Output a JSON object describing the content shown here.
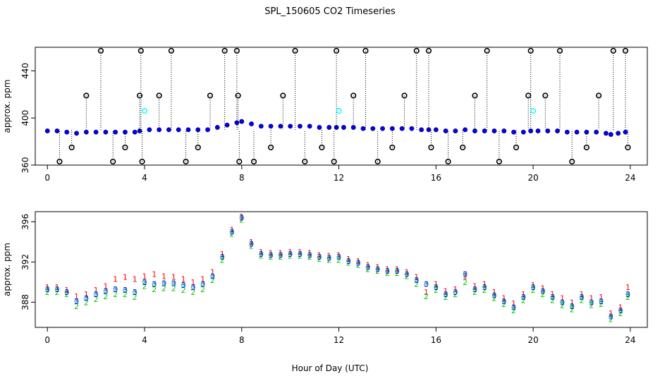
{
  "chart_data": [
    {
      "type": "scatter",
      "title": "SPL_150605  CO2 Timeseries",
      "xlabel": "",
      "ylabel": "approx. ppm",
      "xlim": [
        -0.5,
        24.7
      ],
      "ylim": [
        360,
        460
      ],
      "xticks": [
        0,
        4,
        8,
        12,
        16,
        20,
        24
      ],
      "yticks": [
        360,
        400,
        440
      ],
      "series": [
        {
          "marker": "circle-blue",
          "color": "#0000ff",
          "x": [
            0.0,
            0.4,
            0.8,
            1.2,
            1.6,
            2.0,
            2.4,
            2.8,
            3.2,
            3.6,
            3.8,
            4.2,
            4.6,
            5.0,
            5.4,
            5.8,
            6.2,
            6.6,
            7.0,
            7.4,
            7.8,
            8.0,
            8.4,
            8.8,
            9.2,
            9.6,
            10.0,
            10.4,
            10.8,
            11.2,
            11.6,
            11.9,
            12.2,
            12.6,
            13.0,
            13.4,
            13.8,
            14.2,
            14.6,
            15.0,
            15.4,
            15.7,
            16.0,
            16.4,
            16.8,
            17.2,
            17.6,
            18.0,
            18.4,
            18.8,
            19.2,
            19.6,
            19.9,
            20.2,
            20.6,
            21.0,
            21.4,
            21.8,
            22.2,
            22.6,
            23.0,
            23.2,
            23.5,
            23.8
          ],
          "y": [
            389,
            389,
            388,
            387,
            388,
            388,
            388,
            388,
            388,
            388,
            389,
            390,
            390,
            390,
            390,
            390,
            390,
            390,
            392,
            394,
            396,
            397,
            395,
            393,
            393,
            393,
            393,
            393,
            393,
            392,
            392,
            392,
            392,
            392,
            391,
            391,
            391,
            391,
            391,
            391,
            390,
            390,
            390,
            389,
            389,
            390,
            389,
            389,
            389,
            389,
            388,
            388,
            389,
            389,
            389,
            389,
            388,
            388,
            388,
            388,
            387,
            386,
            387,
            388
          ]
        },
        {
          "marker": "circle-black-outlier",
          "color": "#000000",
          "x": [
            0.5,
            1.0,
            1.6,
            2.2,
            2.7,
            3.2,
            3.8,
            3.85,
            3.9,
            4.6,
            5.1,
            5.7,
            6.2,
            6.7,
            7.3,
            7.8,
            7.85,
            7.9,
            8.5,
            9.2,
            9.7,
            10.2,
            10.6,
            11.3,
            11.8,
            11.9,
            12.6,
            13.1,
            13.6,
            14.2,
            14.7,
            15.2,
            15.7,
            15.8,
            16.5,
            17.1,
            17.6,
            18.1,
            18.6,
            19.3,
            19.8,
            19.9,
            20.5,
            21.1,
            21.6,
            22.2,
            22.7,
            23.3,
            23.8,
            23.9
          ],
          "y": [
            363,
            375,
            419,
            457,
            363,
            375,
            419,
            457,
            363,
            419,
            457,
            363,
            375,
            419,
            457,
            457,
            419,
            363,
            363,
            375,
            419,
            457,
            363,
            375,
            363,
            457,
            419,
            457,
            363,
            375,
            419,
            457,
            457,
            375,
            363,
            375,
            419,
            457,
            363,
            375,
            419,
            457,
            419,
            457,
            363,
            375,
            419,
            457,
            457,
            375
          ]
        },
        {
          "marker": "circle-cyan",
          "color": "#00ffff",
          "x": [
            4.0,
            12.0,
            20.0
          ],
          "y": [
            406,
            406,
            406
          ]
        }
      ]
    },
    {
      "type": "scatter",
      "title": "",
      "xlabel": "Hour of Day (UTC)",
      "ylabel": "approx. ppm",
      "xlim": [
        -0.5,
        24.7
      ],
      "ylim": [
        385.5,
        397
      ],
      "xticks": [
        0,
        4,
        8,
        12,
        16,
        20,
        24
      ],
      "yticks": [
        388,
        392,
        396
      ],
      "series": [
        {
          "marker": "1",
          "color": "#ff0000",
          "x": [
            0.0,
            0.4,
            0.8,
            1.2,
            1.6,
            2.0,
            2.4,
            2.8,
            3.2,
            3.6,
            4.0,
            4.4,
            4.8,
            5.2,
            5.6,
            6.0,
            6.4,
            6.8,
            7.2,
            7.6,
            8.0,
            8.4,
            8.8,
            9.2,
            9.6,
            10.0,
            10.4,
            10.8,
            11.2,
            11.6,
            12.0,
            12.4,
            12.8,
            13.2,
            13.6,
            14.0,
            14.4,
            14.8,
            15.2,
            15.6,
            16.0,
            16.4,
            16.8,
            17.2,
            17.6,
            18.0,
            18.4,
            18.8,
            19.2,
            19.6,
            20.0,
            20.4,
            20.8,
            21.2,
            21.6,
            22.0,
            22.4,
            22.8,
            23.2,
            23.6,
            23.9
          ],
          "y": [
            389.5,
            389.5,
            389.2,
            388.6,
            388.8,
            389.2,
            389.6,
            390.3,
            390.5,
            390.3,
            390.6,
            390.8,
            390.6,
            390.5,
            390.3,
            390.0,
            390.3,
            391.0,
            392.8,
            395.2,
            396.5,
            394.0,
            393.0,
            392.9,
            392.9,
            393.0,
            393.0,
            392.9,
            392.7,
            392.6,
            392.7,
            392.3,
            392.1,
            391.7,
            391.5,
            391.3,
            391.3,
            391.0,
            390.5,
            389.0,
            389.8,
            389.1,
            389.3,
            390.6,
            389.6,
            389.8,
            389.0,
            388.4,
            387.9,
            388.8,
            389.7,
            389.4,
            388.8,
            388.4,
            388.0,
            388.8,
            388.4,
            388.5,
            386.9,
            387.5,
            389.5
          ]
        },
        {
          "marker": "2",
          "color": "#00cc00",
          "x": [
            0.0,
            0.4,
            0.8,
            1.2,
            1.6,
            2.0,
            2.4,
            2.8,
            3.2,
            3.6,
            4.0,
            4.4,
            4.8,
            5.2,
            5.6,
            6.0,
            6.4,
            6.8,
            7.2,
            7.6,
            8.0,
            8.4,
            8.8,
            9.2,
            9.6,
            10.0,
            10.4,
            10.8,
            11.2,
            11.6,
            12.0,
            12.4,
            12.8,
            13.2,
            13.6,
            14.0,
            14.4,
            14.8,
            15.2,
            15.6,
            16.0,
            16.4,
            16.8,
            17.2,
            17.6,
            18.0,
            18.4,
            18.8,
            19.2,
            19.6,
            20.0,
            20.4,
            20.8,
            21.2,
            21.6,
            22.0,
            22.4,
            22.8,
            23.2,
            23.6,
            23.9
          ],
          "y": [
            389.0,
            389.0,
            388.8,
            387.6,
            388.0,
            388.3,
            388.6,
            388.8,
            388.8,
            388.5,
            389.6,
            389.3,
            389.4,
            389.4,
            389.2,
            389.0,
            389.3,
            390.2,
            392.2,
            394.8,
            396.2,
            393.6,
            392.6,
            392.5,
            392.5,
            392.6,
            392.6,
            392.5,
            392.3,
            392.2,
            392.2,
            391.9,
            391.7,
            391.3,
            391.1,
            390.9,
            390.9,
            390.6,
            389.8,
            388.6,
            389.2,
            388.5,
            388.8,
            390.0,
            389.0,
            389.2,
            388.4,
            387.8,
            387.2,
            388.2,
            389.2,
            388.8,
            388.2,
            387.7,
            387.3,
            388.2,
            387.7,
            387.8,
            386.3,
            386.9,
            388.5
          ]
        },
        {
          "marker": "3",
          "color": "#0000ff",
          "x": [
            0.0,
            0.4,
            0.8,
            1.2,
            1.6,
            2.0,
            2.4,
            2.8,
            3.2,
            3.6,
            4.0,
            4.4,
            4.8,
            5.2,
            5.6,
            6.0,
            6.4,
            6.8,
            7.2,
            7.6,
            8.0,
            8.4,
            8.8,
            9.2,
            9.6,
            10.0,
            10.4,
            10.8,
            11.2,
            11.6,
            12.0,
            12.4,
            12.8,
            13.2,
            13.6,
            14.0,
            14.4,
            14.8,
            15.2,
            15.6,
            16.0,
            16.4,
            16.8,
            17.2,
            17.6,
            18.0,
            18.4,
            18.8,
            19.2,
            19.6,
            20.0,
            20.4,
            20.8,
            21.2,
            21.6,
            22.0,
            22.4,
            22.8,
            23.2,
            23.6,
            23.9
          ],
          "y": [
            389.3,
            389.3,
            389.0,
            388.1,
            388.4,
            388.8,
            389.1,
            389.3,
            389.2,
            389.0,
            390.0,
            389.8,
            389.9,
            389.9,
            389.7,
            389.5,
            389.8,
            390.6,
            392.5,
            395.0,
            396.4,
            393.8,
            392.8,
            392.7,
            392.7,
            392.8,
            392.8,
            392.7,
            392.5,
            392.4,
            392.5,
            392.1,
            391.9,
            391.5,
            391.3,
            391.1,
            391.1,
            390.8,
            390.2,
            389.8,
            389.5,
            388.8,
            389.0,
            390.8,
            389.3,
            389.5,
            388.7,
            388.1,
            387.5,
            388.5,
            389.5,
            389.1,
            388.5,
            388.0,
            387.6,
            388.5,
            388.0,
            388.1,
            386.6,
            387.2,
            388.8
          ]
        }
      ]
    }
  ]
}
